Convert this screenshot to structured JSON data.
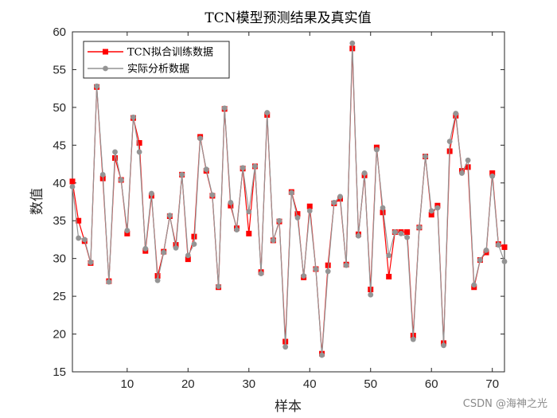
{
  "chart_data": {
    "type": "line",
    "title": "TCN模型预测结果及真实值",
    "xlabel": "样本",
    "ylabel": "数值",
    "xlim": [
      1,
      72
    ],
    "ylim": [
      15,
      60
    ],
    "xticks": [
      10,
      20,
      30,
      40,
      50,
      60,
      70
    ],
    "yticks": [
      15,
      20,
      25,
      30,
      35,
      40,
      45,
      50,
      55,
      60
    ],
    "legend_position": "top-left",
    "series": [
      {
        "name": "TCN拟合训练数据",
        "color": "#ff0000",
        "marker": "square",
        "values": [
          40.2,
          35.0,
          32.3,
          29.4,
          52.7,
          40.6,
          27.0,
          43.3,
          40.4,
          33.3,
          48.6,
          45.3,
          31.0,
          38.3,
          27.7,
          30.9,
          35.6,
          31.8,
          41.1,
          29.9,
          32.9,
          46.1,
          41.6,
          38.3,
          26.2,
          49.8,
          37.0,
          34.0,
          41.9,
          33.3,
          42.2,
          28.2,
          49.0,
          32.4,
          34.9,
          19.0,
          38.8,
          35.9,
          27.5,
          36.9,
          28.6,
          17.4,
          29.1,
          37.3,
          37.9,
          29.2,
          57.8,
          33.2,
          41.0,
          25.9,
          44.7,
          36.1,
          27.6,
          33.5,
          33.5,
          33.5,
          19.8,
          34.1,
          43.5,
          35.8,
          37.0,
          18.8,
          44.2,
          48.9,
          41.6,
          42.1,
          26.2,
          29.8,
          30.8,
          41.3,
          31.9,
          31.5
        ]
      },
      {
        "name": "实际分析数据",
        "color": "#949494",
        "marker": "circle",
        "values": [
          39.5,
          32.7,
          32.5,
          29.5,
          52.8,
          41.1,
          26.9,
          44.1,
          40.4,
          33.7,
          48.7,
          44.1,
          31.3,
          38.6,
          27.1,
          30.8,
          35.7,
          31.4,
          41.1,
          30.4,
          31.9,
          45.9,
          41.8,
          38.4,
          26.3,
          49.9,
          37.4,
          33.8,
          42.0,
          36.2,
          42.2,
          28.0,
          49.3,
          32.4,
          35.0,
          18.3,
          38.7,
          35.4,
          27.7,
          36.3,
          28.6,
          17.2,
          28.3,
          37.4,
          38.2,
          29.1,
          58.5,
          33.0,
          41.3,
          25.2,
          44.4,
          36.7,
          30.4,
          33.5,
          33.3,
          32.8,
          19.3,
          34.1,
          43.5,
          36.3,
          36.7,
          18.5,
          45.5,
          49.2,
          41.3,
          43.0,
          26.5,
          29.8,
          31.1,
          40.9,
          31.8,
          29.6
        ]
      }
    ]
  },
  "watermark": "CSDN @海神之光"
}
